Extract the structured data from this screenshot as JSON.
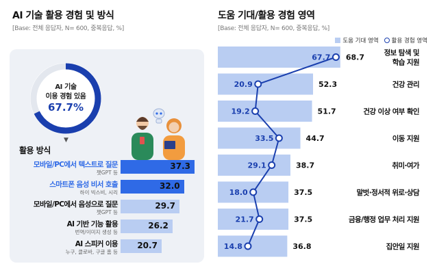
{
  "left": {
    "title": "AI 기술 활용 경험 및 방식",
    "base": "[Base: 전체 응답자, N= 600, 중복응답, %]",
    "donut": {
      "label_line1": "AI 기술",
      "label_line2": "이용 경험 있음",
      "value_text": "67.7%",
      "value": 67.7
    },
    "section_label": "활용 방식",
    "arrow": "▼"
  },
  "right": {
    "title": "도움 기대/활용 경험 영역",
    "base": "[Base: 전체 응답자, N= 600, 중복응답, %]",
    "legend": {
      "bar_label": "도움 기대 영역",
      "line_label": "활용 경험 영역"
    }
  },
  "colors": {
    "dark_blue": "#1a3fae",
    "mid_blue": "#2f6ae6",
    "light_blue": "#b9cdf2",
    "card_bg": "#eef1f6"
  },
  "chart_data": [
    {
      "type": "bar",
      "categories": [
        "모바일/PC에서 텍스트로 질문",
        "스마트폰 음성 비서 호출",
        "모바일/PC에서 음성으로 질문",
        "AI 기반 기능 활용",
        "AI 스피커 이용"
      ],
      "subtitles": [
        "챗GPT 등",
        "하이 빅스비, 시리",
        "챗GPT 등",
        "번역/이미지 생성 등",
        "누구, 클로바, 구글 홈 등"
      ],
      "values": [
        37.3,
        32.0,
        29.7,
        26.2,
        20.7
      ],
      "value_labels": [
        "37.3",
        "32.0",
        "29.7",
        "26.2",
        "20.7"
      ],
      "highlight": [
        true,
        true,
        false,
        false,
        false
      ]
    },
    {
      "type": "bar",
      "categories": [
        "정보 탐색 및 학습 지원",
        "건강 관리",
        "건강 이상 여부 확인",
        "이동 지원",
        "취미·여가",
        "말벗·정서적 위로·상담",
        "금융/행정 업무 처리 지원",
        "집안일 지원"
      ],
      "category_lines": [
        [
          "정보 탐색 및",
          "학습 지원"
        ],
        [
          "건강 관리"
        ],
        [
          "건강 이상 여부 확인"
        ],
        [
          "이동 지원"
        ],
        [
          "취미·여가"
        ],
        [
          "말벗·정서적 위로·상담"
        ],
        [
          "금융/행정 업무 처리 지원"
        ],
        [
          "집안일 지원"
        ]
      ],
      "series": [
        {
          "name": "도움 기대 영역",
          "values": [
            68.7,
            52.3,
            51.7,
            44.7,
            38.7,
            37.5,
            37.5,
            36.8
          ],
          "labels": [
            "68.7",
            "52.3",
            "51.7",
            "44.7",
            "38.7",
            "37.5",
            "37.5",
            "36.8"
          ]
        },
        {
          "name": "활용 경험 영역",
          "values": [
            67.7,
            20.9,
            19.2,
            33.5,
            29.1,
            18.0,
            21.7,
            14.8
          ],
          "labels": [
            "67.7",
            "20.9",
            "19.2",
            "33.5",
            "29.1",
            "18.0",
            "21.7",
            "14.8"
          ]
        }
      ]
    }
  ]
}
